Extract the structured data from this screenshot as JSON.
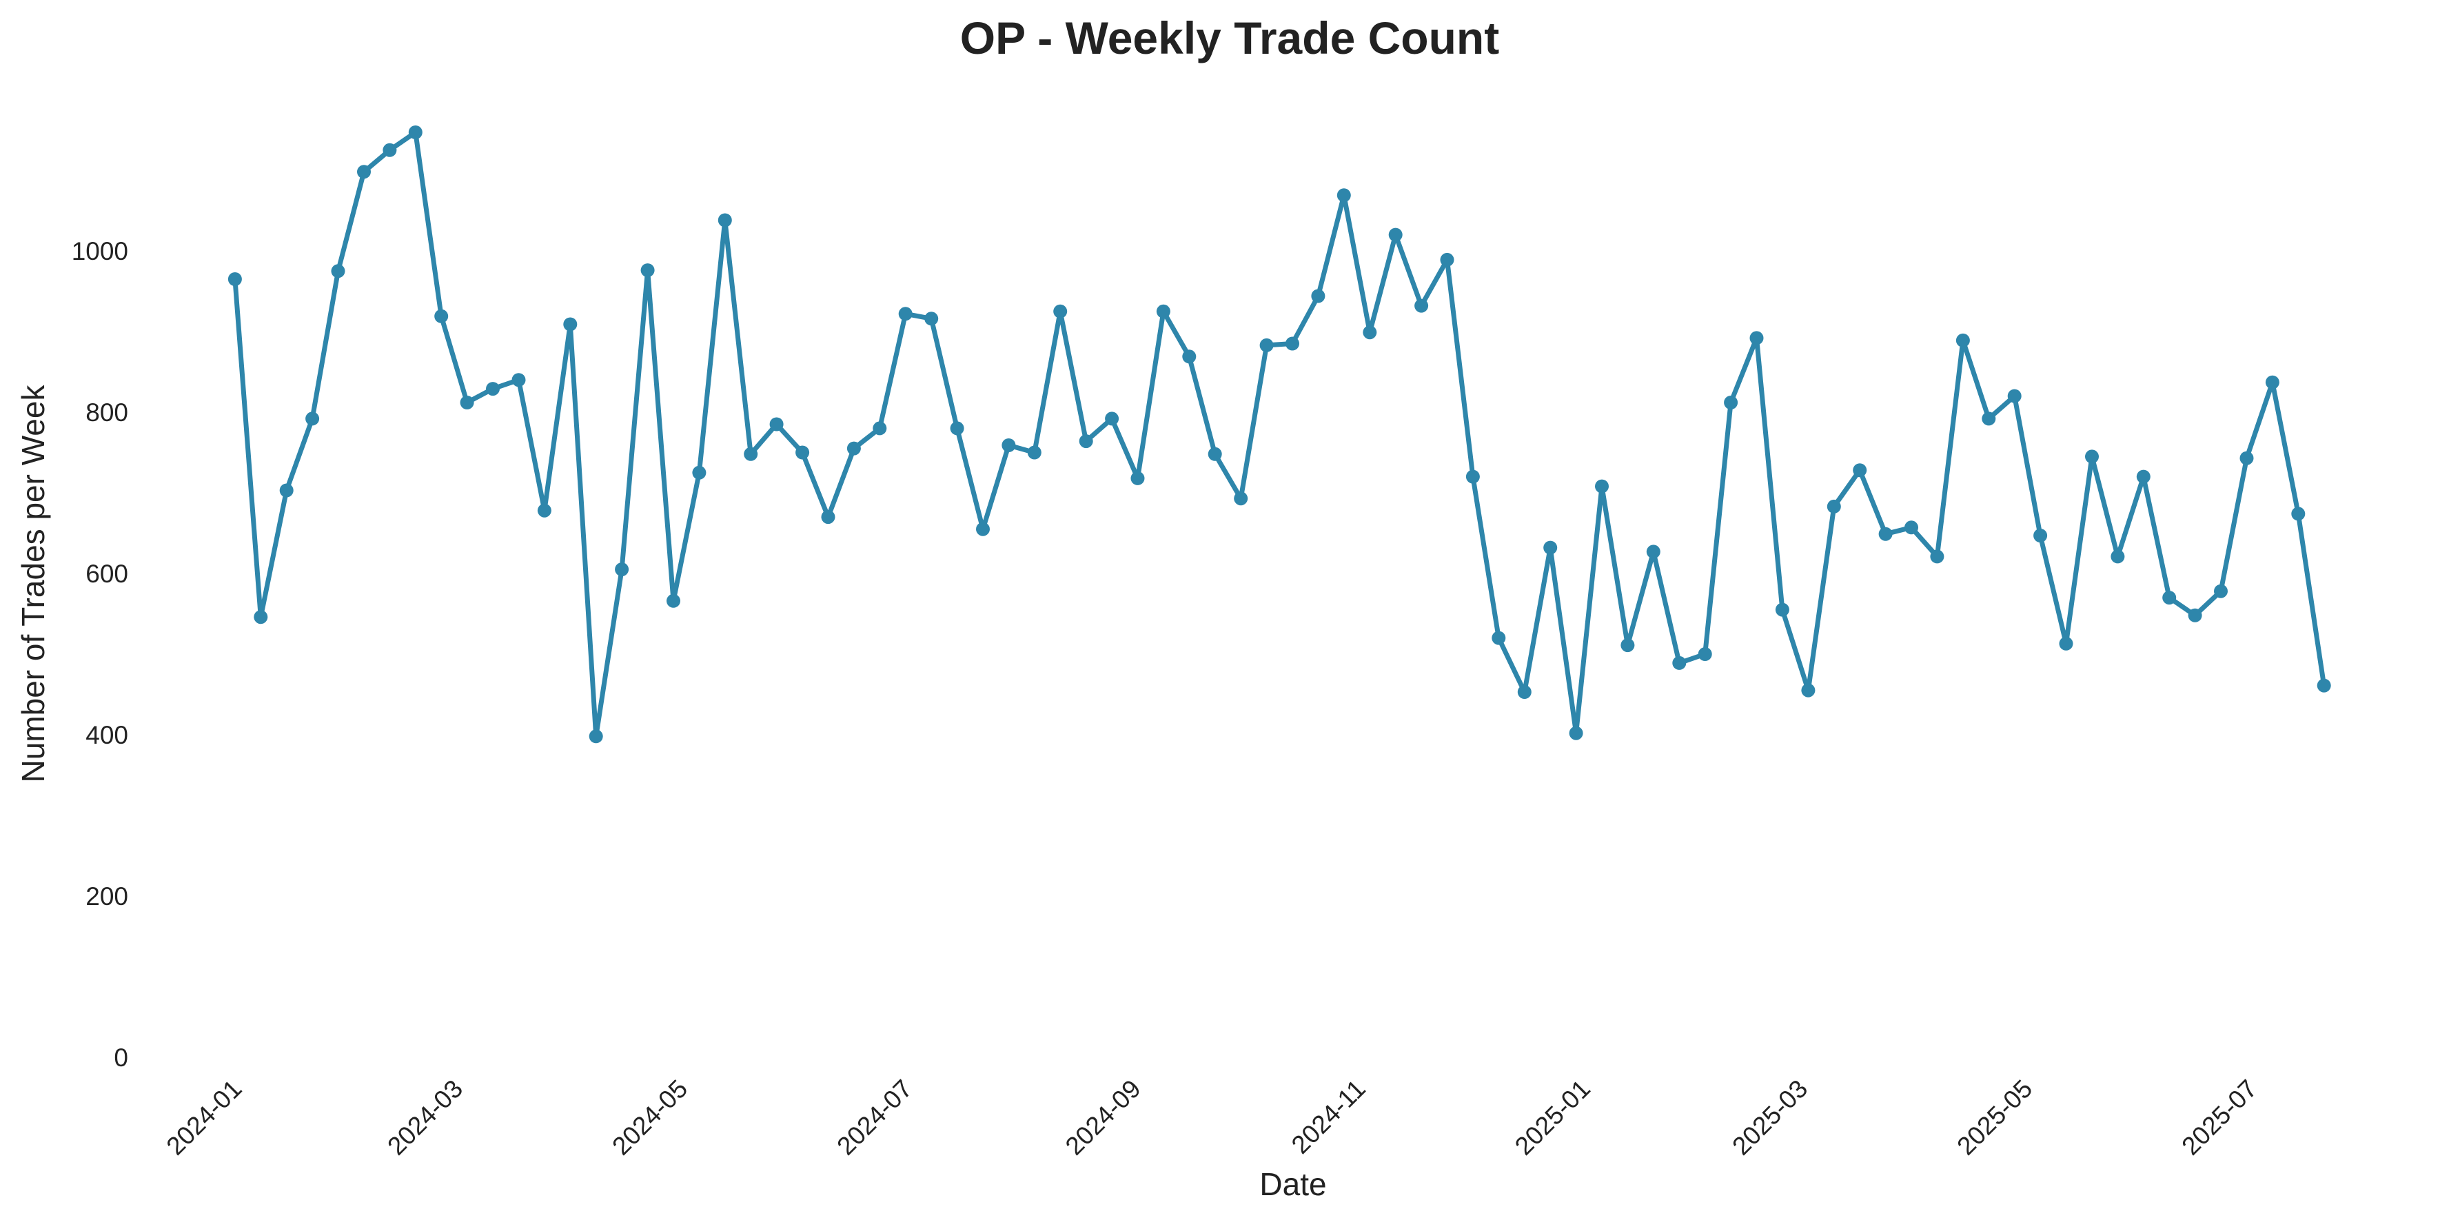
{
  "chart_data": {
    "type": "line",
    "title": "OP - Weekly Trade Count",
    "xlabel": "Date",
    "ylabel": "Number of Trades per Week",
    "line_color": "#2e86ab",
    "grid": false,
    "ylim": [
      0,
      1200
    ],
    "xlim": [
      "2023-12-15",
      "2025-08-14"
    ],
    "x_ticks": [
      {
        "date": "2024-01-01",
        "label": "2024-01"
      },
      {
        "date": "2024-03-01",
        "label": "2024-03"
      },
      {
        "date": "2024-05-01",
        "label": "2024-05"
      },
      {
        "date": "2024-07-01",
        "label": "2024-07"
      },
      {
        "date": "2024-09-01",
        "label": "2024-09"
      },
      {
        "date": "2024-11-01",
        "label": "2024-11"
      },
      {
        "date": "2025-01-01",
        "label": "2025-01"
      },
      {
        "date": "2025-03-01",
        "label": "2025-03"
      },
      {
        "date": "2025-05-01",
        "label": "2025-05"
      },
      {
        "date": "2025-07-01",
        "label": "2025-07"
      }
    ],
    "y_ticks": [
      {
        "value": 0,
        "label": "0"
      },
      {
        "value": 200,
        "label": "200"
      },
      {
        "value": 400,
        "label": "400"
      },
      {
        "value": 600,
        "label": "600"
      },
      {
        "value": 800,
        "label": "800"
      },
      {
        "value": 1000,
        "label": "1000"
      }
    ],
    "series": [
      {
        "x": [
          "2024-01-01",
          "2024-01-08",
          "2024-01-15",
          "2024-01-22",
          "2024-01-29",
          "2024-02-05",
          "2024-02-12",
          "2024-02-19",
          "2024-02-26",
          "2024-03-04",
          "2024-03-11",
          "2024-03-18",
          "2024-03-25",
          "2024-04-01",
          "2024-04-08",
          "2024-04-15",
          "2024-04-22",
          "2024-04-29",
          "2024-05-06",
          "2024-05-13",
          "2024-05-20",
          "2024-05-27",
          "2024-06-03",
          "2024-06-10",
          "2024-06-17",
          "2024-06-24",
          "2024-07-01",
          "2024-07-08",
          "2024-07-15",
          "2024-07-22",
          "2024-07-29",
          "2024-08-05",
          "2024-08-12",
          "2024-08-19",
          "2024-08-26",
          "2024-09-02",
          "2024-09-09",
          "2024-09-16",
          "2024-09-23",
          "2024-09-30",
          "2024-10-07",
          "2024-10-14",
          "2024-10-21",
          "2024-10-28",
          "2024-11-04",
          "2024-11-11",
          "2024-11-18",
          "2024-11-25",
          "2024-12-02",
          "2024-12-09",
          "2024-12-16",
          "2024-12-23",
          "2024-12-30",
          "2025-01-06",
          "2025-01-13",
          "2025-01-20",
          "2025-01-27",
          "2025-02-03",
          "2025-02-10",
          "2025-02-17",
          "2025-02-24",
          "2025-03-03",
          "2025-03-10",
          "2025-03-17",
          "2025-03-24",
          "2025-03-31",
          "2025-04-07",
          "2025-04-14",
          "2025-04-21",
          "2025-04-28",
          "2025-05-05",
          "2025-05-12",
          "2025-05-19",
          "2025-05-26",
          "2025-06-02",
          "2025-06-09",
          "2025-06-16",
          "2025-06-23",
          "2025-06-30",
          "2025-07-07",
          "2025-07-14",
          "2025-07-21"
        ],
        "values": [
          965,
          546,
          703,
          792,
          975,
          1098,
          1125,
          1147,
          919,
          812,
          829,
          840,
          678,
          909,
          398,
          605,
          976,
          566,
          725,
          1038,
          748,
          785,
          750,
          670,
          755,
          780,
          922,
          916,
          780,
          655,
          759,
          750,
          925,
          764,
          792,
          718,
          925,
          869,
          748,
          693,
          883,
          885,
          944,
          1069,
          899,
          1020,
          932,
          989,
          720,
          520,
          453,
          632,
          402,
          708,
          511,
          627,
          489,
          500,
          812,
          892,
          555,
          455,
          683,
          728,
          649,
          657,
          621,
          889,
          792,
          820,
          647,
          513,
          745,
          621,
          720,
          570,
          548,
          578,
          743,
          837,
          674,
          461
        ]
      }
    ]
  }
}
